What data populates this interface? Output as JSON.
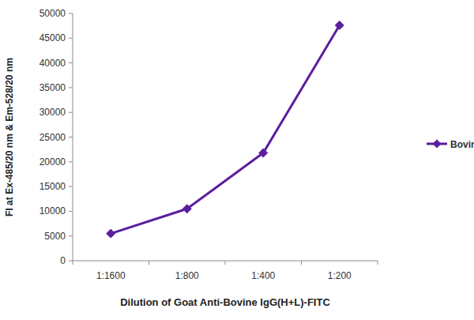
{
  "chart_data": {
    "type": "line",
    "x_label": "Dilution of Goat Anti-Bovine IgG(H+L)-FITC",
    "y_label": "FI at Ex-485/20 nm & Em-528/20 nm",
    "categories": [
      "1:1600",
      "1:800",
      "1:400",
      "1:200"
    ],
    "series": [
      {
        "name": "Bovine IgG",
        "color": "#5a1e9e",
        "marker": "diamond",
        "values": [
          5500,
          10500,
          21800,
          47600
        ]
      }
    ],
    "ylim": [
      0,
      50000
    ],
    "yticks": [
      0,
      5000,
      10000,
      15000,
      20000,
      25000,
      30000,
      35000,
      40000,
      45000,
      50000
    ],
    "grid": false,
    "legend": "right"
  }
}
